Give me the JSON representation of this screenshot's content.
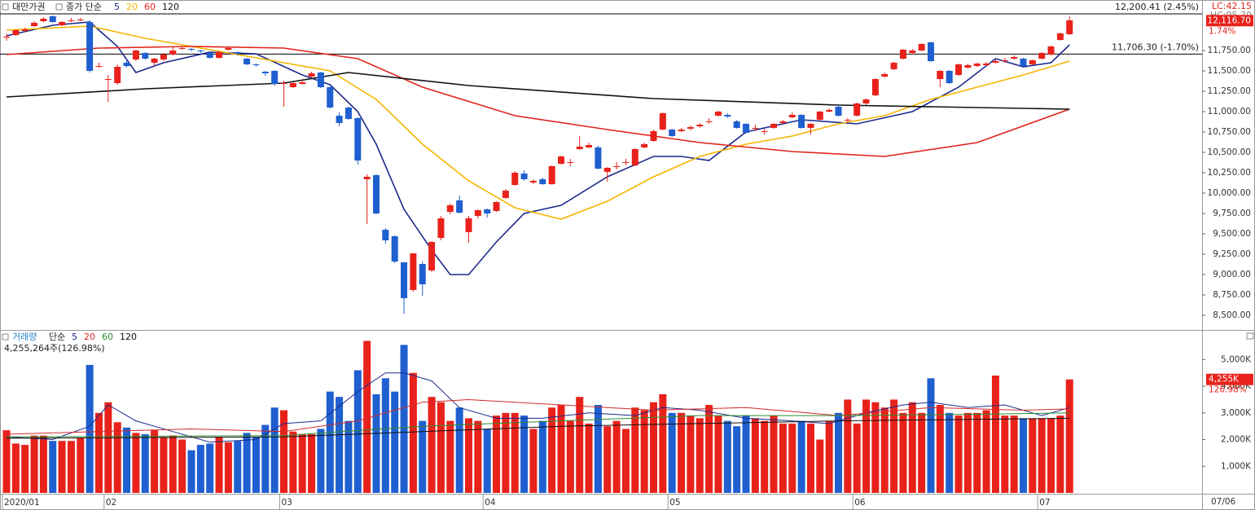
{
  "chart_data": [
    {
      "type": "candlestick",
      "title": "대만가권",
      "ma_label": "종가 단순",
      "up_color": "#e8221b",
      "down_color": "#1f5fd0",
      "open": [
        11920,
        11940,
        11990,
        12050,
        12110,
        12170,
        12060,
        12110,
        12120,
        12100,
        11560,
        11400,
        11350,
        11600,
        11640,
        11720,
        11600,
        11640,
        11700,
        11770,
        11770,
        11750,
        11720,
        11660,
        11760,
        11730,
        11650,
        11580,
        11490,
        11500,
        11350,
        11300,
        11340,
        11430,
        11480,
        11300,
        10950,
        11050,
        10920,
        10170,
        10220,
        9550,
        9470,
        9150,
        8810,
        9130,
        9050,
        9450,
        9770,
        9910,
        9520,
        9720,
        9800,
        9780,
        9940,
        10100,
        10240,
        10130,
        10170,
        10110,
        10360,
        10380,
        10540,
        10560,
        10560,
        10260,
        10330,
        10370,
        10340,
        10560,
        10640,
        10780,
        10780,
        10760,
        10790,
        10820,
        10880,
        10950,
        10960,
        10880,
        10850,
        10800,
        10760,
        10800,
        10860,
        10930,
        10960,
        10800,
        10900,
        11000,
        11060,
        10900,
        10950,
        11100,
        11200,
        11430,
        11520,
        11650,
        11720,
        11750,
        11850,
        11400,
        11500,
        11450,
        11540,
        11560,
        11570,
        11600,
        11630,
        11650,
        11650,
        11580,
        11650,
        11700,
        11880,
        11950
      ],
      "high": [
        11960,
        12010,
        12030,
        12110,
        12160,
        12180,
        12110,
        12150,
        12150,
        12120,
        11600,
        11450,
        11580,
        11620,
        11760,
        11730,
        11660,
        11720,
        11790,
        11800,
        11780,
        11760,
        11730,
        11740,
        11800,
        11740,
        11660,
        11590,
        11500,
        11510,
        11380,
        11360,
        11400,
        11490,
        11490,
        11310,
        10990,
        11060,
        10930,
        10230,
        10230,
        9570,
        9480,
        9150,
        9260,
        9160,
        9410,
        9720,
        9870,
        9970,
        9720,
        9800,
        9810,
        9900,
        10050,
        10270,
        10280,
        10170,
        10190,
        10340,
        10460,
        10420,
        10700,
        10620,
        10580,
        10320,
        10380,
        10420,
        10550,
        10620,
        10780,
        10990,
        10790,
        10800,
        10830,
        10860,
        10920,
        11010,
        10980,
        10900,
        10860,
        10840,
        10790,
        10860,
        10900,
        10990,
        10970,
        10860,
        11010,
        11040,
        11080,
        10920,
        11110,
        11160,
        11410,
        11480,
        11610,
        11770,
        11770,
        11840,
        11860,
        11510,
        11510,
        11590,
        11590,
        11600,
        11610,
        11640,
        11660,
        11690,
        11660,
        11640,
        11730,
        11810,
        11970,
        12170
      ],
      "low": [
        11870,
        11930,
        11980,
        12040,
        12100,
        12090,
        12050,
        12100,
        12110,
        11480,
        11540,
        11120,
        11330,
        11540,
        11620,
        11640,
        11560,
        11620,
        11690,
        11760,
        11740,
        11720,
        11650,
        11650,
        11750,
        11690,
        11570,
        11550,
        11440,
        11320,
        11060,
        11290,
        11330,
        11420,
        11290,
        11040,
        10820,
        10900,
        10350,
        9620,
        9740,
        9380,
        9140,
        8520,
        8790,
        8740,
        9030,
        9420,
        9740,
        9750,
        9390,
        9690,
        9700,
        9770,
        9930,
        10090,
        10150,
        10110,
        10100,
        10100,
        10350,
        10330,
        10530,
        10550,
        10290,
        10140,
        10290,
        10340,
        10330,
        10550,
        10630,
        10770,
        10690,
        10750,
        10770,
        10800,
        10850,
        10940,
        10920,
        10790,
        10730,
        10760,
        10720,
        10790,
        10850,
        10920,
        10790,
        10720,
        10890,
        10990,
        10940,
        10860,
        10940,
        11080,
        11190,
        11420,
        11510,
        11640,
        11700,
        11740,
        11610,
        11300,
        11340,
        11440,
        11530,
        11550,
        11560,
        11590,
        11600,
        11640,
        11550,
        11570,
        11640,
        11690,
        11870,
        11940
      ],
      "close": [
        11920,
        12000,
        12010,
        12090,
        12140,
        12100,
        12100,
        12120,
        12130,
        11500,
        11560,
        11400,
        11550,
        11560,
        11750,
        11650,
        11650,
        11700,
        11750,
        11780,
        11760,
        11740,
        11660,
        11730,
        11780,
        11710,
        11580,
        11570,
        11470,
        11340,
        11350,
        11350,
        11360,
        11470,
        11300,
        11050,
        10860,
        10910,
        10400,
        10200,
        9750,
        9420,
        9160,
        8710,
        9260,
        8880,
        9400,
        9690,
        9850,
        9760,
        9690,
        9790,
        9750,
        9890,
        10030,
        10250,
        10170,
        10150,
        10110,
        10330,
        10450,
        10380,
        10570,
        10590,
        10300,
        10310,
        10330,
        10380,
        10540,
        10600,
        10760,
        10980,
        10700,
        10780,
        10810,
        10840,
        10880,
        11000,
        10940,
        10800,
        10740,
        10800,
        10760,
        10850,
        10880,
        10960,
        10800,
        10850,
        11000,
        11020,
        10950,
        10900,
        11100,
        11150,
        11400,
        11460,
        11600,
        11760,
        11750,
        11830,
        11620,
        11500,
        11350,
        11580,
        11570,
        11590,
        11590,
        11620,
        11630,
        11670,
        11560,
        11630,
        11720,
        11800,
        11960,
        12120
      ],
      "series": [
        {
          "name": "5",
          "color": "#1c2a8c",
          "x": [
            0,
            5,
            9,
            12,
            14,
            17,
            22,
            27,
            32,
            35,
            38,
            40,
            43,
            46,
            48,
            50,
            53,
            56,
            60,
            65,
            70,
            73,
            76,
            80,
            86,
            92,
            98,
            103,
            107,
            110,
            113,
            115
          ],
          "values": [
            11930,
            12060,
            12100,
            11800,
            11480,
            11600,
            11730,
            11710,
            11450,
            11330,
            11000,
            10600,
            9800,
            9300,
            9000,
            9000,
            9400,
            9750,
            9850,
            10200,
            10450,
            10450,
            10400,
            10750,
            10900,
            10850,
            11000,
            11300,
            11650,
            11550,
            11600,
            11820
          ]
        },
        {
          "name": "20",
          "color": "#f5b400",
          "x": [
            0,
            9,
            15,
            20,
            25,
            30,
            35,
            40,
            45,
            50,
            55,
            60,
            65,
            70,
            75,
            80,
            85,
            90,
            95,
            100,
            105,
            110,
            115
          ],
          "values": [
            12000,
            12050,
            11900,
            11800,
            11700,
            11600,
            11500,
            11150,
            10600,
            10150,
            9820,
            9680,
            9900,
            10200,
            10450,
            10600,
            10700,
            10850,
            10950,
            11150,
            11300,
            11450,
            11620
          ]
        },
        {
          "name": "60",
          "color": "#e0241b",
          "x": [
            0,
            10,
            20,
            30,
            38,
            45,
            55,
            65,
            75,
            85,
            95,
            105,
            115
          ],
          "values": [
            11700,
            11780,
            11800,
            11780,
            11650,
            11300,
            10950,
            10780,
            10620,
            10510,
            10450,
            10620,
            11030
          ]
        },
        {
          "name": "120",
          "color": "#111111",
          "x": [
            0,
            15,
            30,
            37,
            50,
            70,
            90,
            115
          ],
          "values": [
            11180,
            11280,
            11350,
            11480,
            11320,
            11160,
            11080,
            11030
          ]
        }
      ],
      "ylim": [
        8320,
        12190
      ],
      "yticks": [
        {
          "value": 8500,
          "label": "8,500.00"
        },
        {
          "value": 8750,
          "label": "8,750.00"
        },
        {
          "value": 9000,
          "label": "9,000.00"
        },
        {
          "value": 9250,
          "label": "9,250.00"
        },
        {
          "value": 9500,
          "label": "9,500.00"
        },
        {
          "value": 9750,
          "label": "9,750.00"
        },
        {
          "value": 10000,
          "label": "10,000.00"
        },
        {
          "value": 10250,
          "label": "10,250.00"
        },
        {
          "value": 10500,
          "label": "10,500.00"
        },
        {
          "value": 10750,
          "label": "10,750.00"
        },
        {
          "value": 11000,
          "label": "11,000.00"
        },
        {
          "value": 11250,
          "label": "11,250.00"
        },
        {
          "value": 11500,
          "label": "11,500.00"
        },
        {
          "value": 11750,
          "label": "11,750.00"
        }
      ],
      "ref_lines": [
        {
          "value": 12200.41,
          "label": "12,200.41 (2.45%)"
        },
        {
          "value": 11706.3,
          "label": "11,706.30 (-1.70%)"
        }
      ],
      "last_price": {
        "value": 12116.7,
        "label": "12,116.70",
        "change": "1.74%"
      },
      "corner_labels": [
        "LC:42.15",
        "HC:95.70"
      ]
    },
    {
      "type": "bar",
      "title": "거래량",
      "ma_label": "단순",
      "summary": "4,255,264주(126.98%)",
      "values": [
        2350,
        1850,
        1800,
        2150,
        2150,
        1950,
        1950,
        1950,
        2050,
        4800,
        3000,
        3400,
        2650,
        2450,
        2250,
        2200,
        2350,
        2100,
        2150,
        2000,
        1600,
        1800,
        1850,
        2100,
        1900,
        1950,
        2250,
        2100,
        2550,
        3200,
        3100,
        2300,
        2200,
        2200,
        2400,
        3800,
        3600,
        2700,
        4600,
        5700,
        3700,
        4300,
        3800,
        5550,
        4500,
        2700,
        3600,
        3400,
        2700,
        3200,
        2800,
        2700,
        2400,
        2900,
        3000,
        3000,
        2900,
        2400,
        2700,
        3200,
        3300,
        2700,
        3600,
        2600,
        3300,
        2500,
        2700,
        2400,
        3200,
        3100,
        3400,
        3700,
        3000,
        3000,
        2900,
        2800,
        3300,
        2900,
        2700,
        2500,
        2900,
        2800,
        2700,
        2900,
        2600,
        2600,
        2700,
        2600,
        2000,
        2700,
        3000,
        3500,
        2600,
        3500,
        3400,
        3200,
        3500,
        3000,
        3400,
        3000,
        4300,
        3300,
        3000,
        2900,
        3000,
        3000,
        3100,
        4400,
        2900,
        2900,
        2800,
        2800,
        2800,
        2800,
        2900,
        4255
      ],
      "series": [
        {
          "name": "5",
          "color": "#1c2a8c",
          "x": [
            0,
            5,
            9,
            11,
            14,
            18,
            22,
            27,
            30,
            34,
            38,
            41,
            43,
            46,
            49,
            53,
            58,
            63,
            68,
            71,
            75,
            80,
            85,
            89,
            93,
            97,
            100,
            104,
            108,
            112,
            115
          ],
          "values": [
            2100,
            2000,
            2500,
            3300,
            2700,
            2300,
            1900,
            2000,
            2600,
            2700,
            3800,
            4500,
            4500,
            4200,
            3200,
            2800,
            2800,
            3000,
            2900,
            3200,
            3100,
            2800,
            2700,
            2600,
            3000,
            3300,
            3400,
            3200,
            3300,
            2900,
            3200
          ]
        },
        {
          "name": "20",
          "color": "#d42a2a",
          "x": [
            0,
            10,
            20,
            30,
            38,
            45,
            50,
            60,
            70,
            80,
            90,
            100,
            110,
            115
          ],
          "values": [
            2200,
            2300,
            2400,
            2300,
            2700,
            3400,
            3500,
            3300,
            3100,
            3200,
            2900,
            3200,
            3100,
            3150
          ]
        },
        {
          "name": "60",
          "color": "#2e8b2e",
          "x": [
            0,
            30,
            45,
            60,
            75,
            90,
            105,
            115
          ],
          "values": [
            2100,
            2150,
            2500,
            2700,
            2900,
            2900,
            2950,
            3000
          ]
        },
        {
          "name": "120",
          "color": "#111111",
          "x": [
            0,
            30,
            60,
            90,
            115
          ],
          "values": [
            2050,
            2100,
            2500,
            2700,
            2800
          ]
        }
      ],
      "ylim": [
        0,
        6050
      ],
      "yticks": [
        {
          "value": 1000,
          "label": "1,000K"
        },
        {
          "value": 2000,
          "label": "2,000K"
        },
        {
          "value": 3000,
          "label": "3,000K"
        },
        {
          "value": 4000,
          "label": "4,000K"
        },
        {
          "value": 5000,
          "label": "5,000K"
        }
      ],
      "last_label": "4,255K",
      "last_change": "126.98%"
    }
  ],
  "x_axis": {
    "labels": [
      {
        "index": 0,
        "label": "2020/01"
      },
      {
        "index": 11,
        "label": "02"
      },
      {
        "index": 30,
        "label": "03"
      },
      {
        "index": 52,
        "label": "04"
      },
      {
        "index": 72,
        "label": "05"
      },
      {
        "index": 92,
        "label": "06"
      },
      {
        "index": 112,
        "label": "07"
      }
    ],
    "end_label": "07/06"
  }
}
